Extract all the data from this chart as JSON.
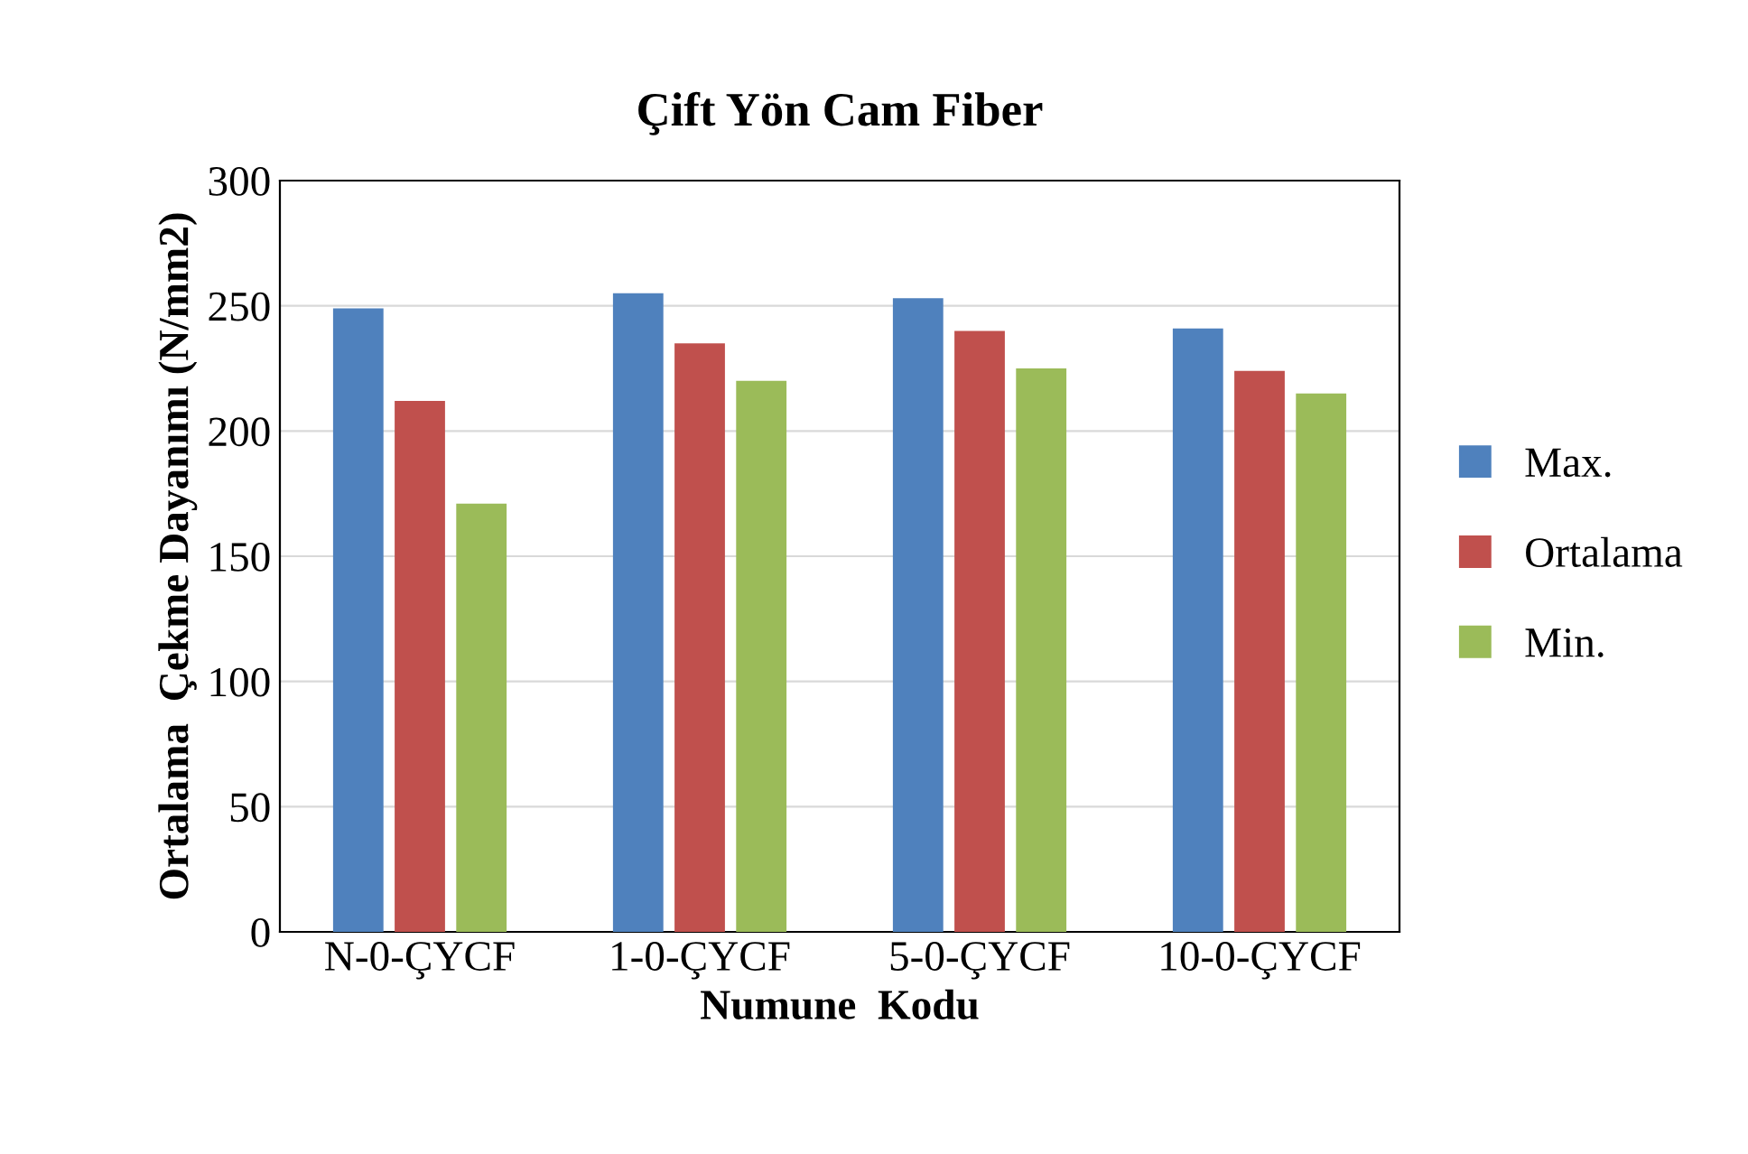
{
  "chart_data": {
    "type": "bar",
    "title": "Çift Yön Cam Fiber",
    "xlabel": "Numune  Kodu",
    "ylabel": "Ortalama  Çekme Dayanımı (N/mm2)",
    "categories": [
      "N-0-ÇYCF",
      "1-0-ÇYCF",
      "5-0-ÇYCF",
      "10-0-ÇYCF"
    ],
    "series": [
      {
        "name": "Max.",
        "color": "#4f81bd",
        "values": [
          249,
          255,
          253,
          241
        ]
      },
      {
        "name": "Ortalama",
        "color": "#c0504d",
        "values": [
          212,
          235,
          240,
          224
        ]
      },
      {
        "name": "Min.",
        "color": "#9bbb59",
        "values": [
          171,
          220,
          225,
          215
        ]
      }
    ],
    "ylim": [
      0,
      300
    ],
    "yticks": [
      0,
      50,
      100,
      150,
      200,
      250,
      300
    ],
    "grid": "y",
    "legend": "right"
  }
}
